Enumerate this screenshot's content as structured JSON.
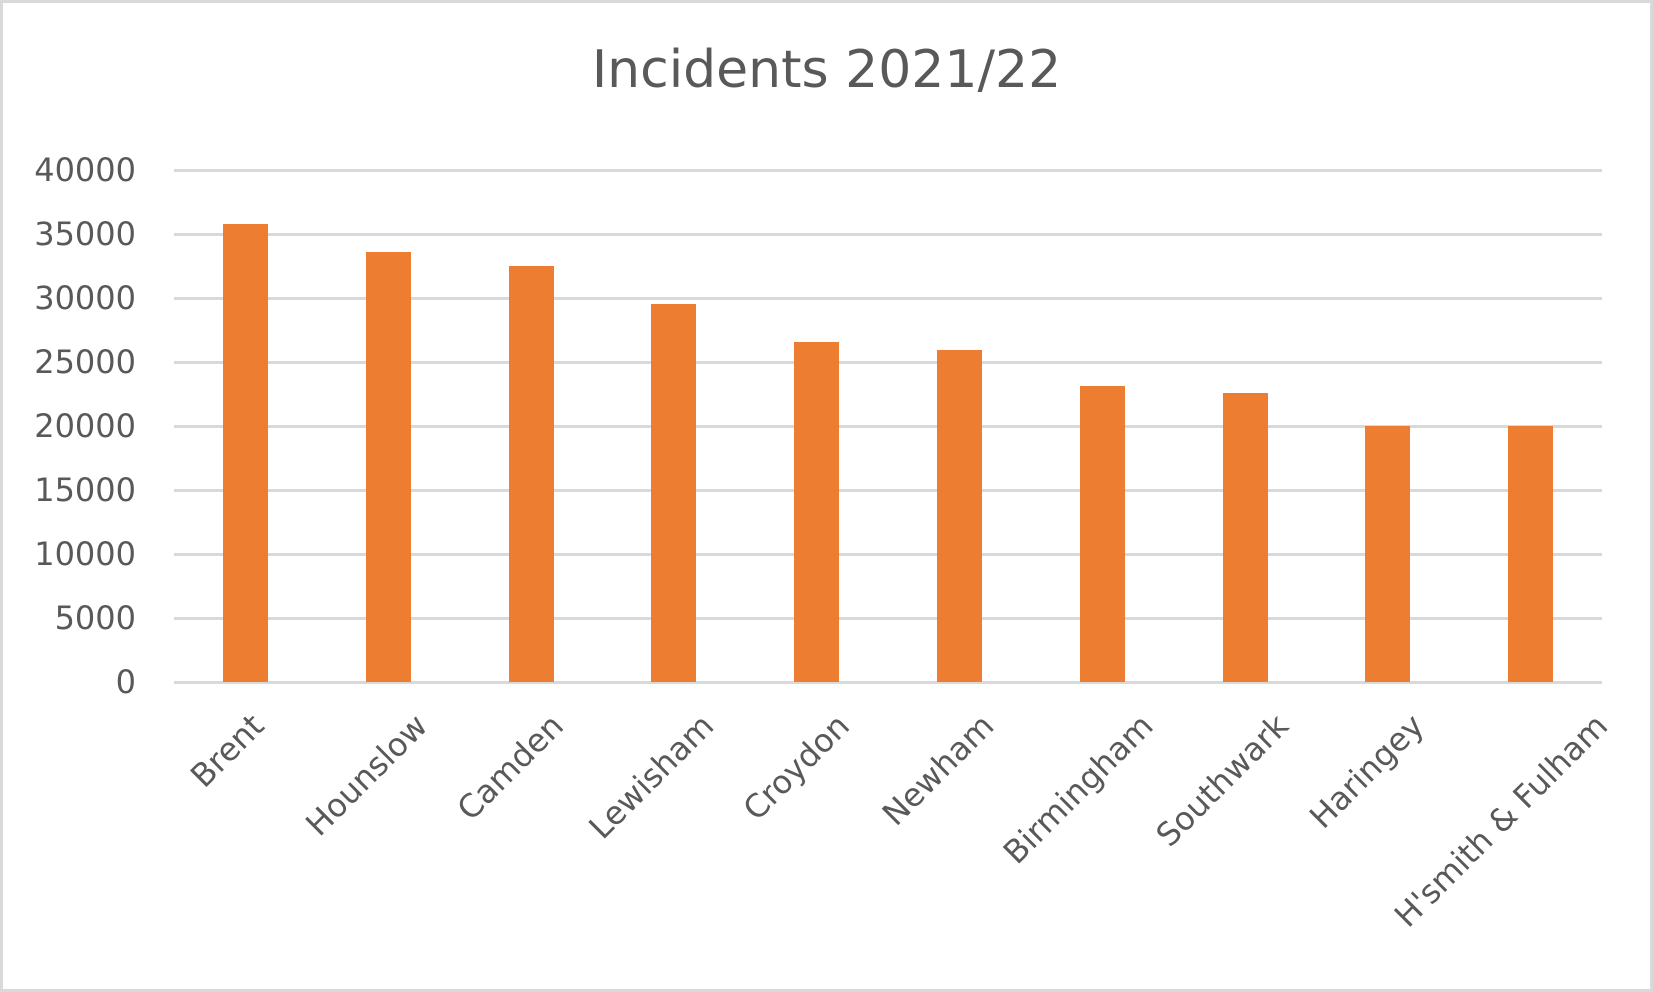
{
  "chart_data": {
    "type": "bar",
    "title": "Incidents 2021/22",
    "xlabel": "",
    "ylabel": "",
    "categories": [
      "Brent",
      "Hounslow",
      "Camden",
      "Lewisham",
      "Croydon",
      "Newham",
      "Birmingham",
      "Southwark",
      "Haringey",
      "H'smith & Fulham"
    ],
    "values": [
      35800,
      33600,
      32500,
      29500,
      26600,
      25900,
      23100,
      22600,
      20000,
      20000
    ],
    "ylim": [
      0,
      40000
    ],
    "yticks": [
      "0",
      "5000",
      "10000",
      "15000",
      "20000",
      "25000",
      "30000",
      "35000",
      "40000"
    ],
    "grid": true,
    "legend": null,
    "bar_color": "#ed7d31",
    "gridline_color": "#d9d9d9",
    "text_color": "#595959"
  }
}
